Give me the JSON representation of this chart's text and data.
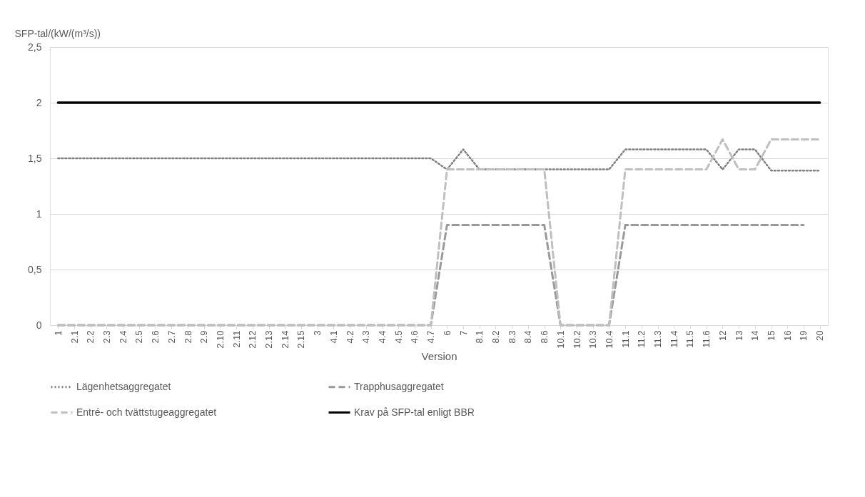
{
  "chart_data": {
    "type": "line",
    "xlabel": "Version",
    "ylabel": "SFP-tal/(kW/(m³/s))",
    "categories": [
      "1",
      "2.1",
      "2.2",
      "2.3",
      "2.4",
      "2.5",
      "2.6",
      "2.7",
      "2.8",
      "2.9",
      "2.10",
      "2.11",
      "2.12",
      "2.13",
      "2.14",
      "2.15",
      "3",
      "4.1",
      "4.2",
      "4.3",
      "4.4",
      "4.5",
      "4.6",
      "4.7",
      "6",
      "7",
      "8.1",
      "8.2",
      "8.3",
      "8.4",
      "8.6",
      "10.1",
      "10.2",
      "10.3",
      "10.4",
      "11.1",
      "11.2",
      "11.3",
      "11.4",
      "11.5",
      "11.6",
      "12",
      "13",
      "14",
      "15",
      "16",
      "19",
      "20"
    ],
    "series": [
      {
        "name": "Lägenhetsaggregatet",
        "color": "#7f7f7f",
        "line_style": "dotted",
        "values": [
          1.5,
          1.5,
          1.5,
          1.5,
          1.5,
          1.5,
          1.5,
          1.5,
          1.5,
          1.5,
          1.5,
          1.5,
          1.5,
          1.5,
          1.5,
          1.5,
          1.5,
          1.5,
          1.5,
          1.5,
          1.5,
          1.5,
          1.5,
          1.5,
          1.4,
          1.58,
          1.4,
          1.4,
          1.4,
          1.4,
          1.4,
          1.4,
          1.4,
          1.4,
          1.4,
          1.58,
          1.58,
          1.58,
          1.58,
          1.58,
          1.58,
          1.4,
          1.58,
          1.58,
          1.39,
          1.39,
          1.39,
          1.39
        ]
      },
      {
        "name": "Trapphusaggregatet",
        "color": "#999999",
        "line_style": "dashed",
        "values": [
          0,
          0,
          0,
          0,
          0,
          0,
          0,
          0,
          0,
          0,
          0,
          0,
          0,
          0,
          0,
          0,
          0,
          0,
          0,
          0,
          0,
          0,
          0,
          0,
          0.9,
          0.9,
          0.9,
          0.9,
          0.9,
          0.9,
          0.9,
          0,
          0,
          0,
          0,
          0.9,
          0.9,
          0.9,
          0.9,
          0.9,
          0.9,
          0.9,
          0.9,
          0.9,
          0.9,
          0.9,
          0.9,
          null
        ]
      },
      {
        "name": "Entré- och tvättstugeaggregatet",
        "color": "#bfbfbf",
        "line_style": "dashed",
        "values": [
          0,
          0,
          0,
          0,
          0,
          0,
          0,
          0,
          0,
          0,
          0,
          0,
          0,
          0,
          0,
          0,
          0,
          0,
          0,
          0,
          0,
          0,
          0,
          0,
          1.4,
          1.4,
          1.4,
          1.4,
          1.4,
          1.4,
          1.4,
          0,
          0,
          0,
          0,
          1.4,
          1.4,
          1.4,
          1.4,
          1.4,
          1.4,
          1.67,
          1.4,
          1.4,
          1.67,
          1.67,
          1.67,
          1.67
        ]
      },
      {
        "name": "Krav på SFP-tal enligt BBR",
        "color": "#000000",
        "line_style": "solid",
        "values": [
          2,
          2,
          2,
          2,
          2,
          2,
          2,
          2,
          2,
          2,
          2,
          2,
          2,
          2,
          2,
          2,
          2,
          2,
          2,
          2,
          2,
          2,
          2,
          2,
          2,
          2,
          2,
          2,
          2,
          2,
          2,
          2,
          2,
          2,
          2,
          2,
          2,
          2,
          2,
          2,
          2,
          2,
          2,
          2,
          2,
          2,
          2,
          2
        ]
      }
    ],
    "ylim": [
      0,
      2.5
    ],
    "yticks": [
      0,
      {
        "value": 0.5,
        "label": "0,5"
      },
      1,
      {
        "value": 1.5,
        "label": "1,5"
      },
      2,
      {
        "value": 2.5,
        "label": "2,5"
      }
    ],
    "grid": "y",
    "legend": "bottom"
  }
}
